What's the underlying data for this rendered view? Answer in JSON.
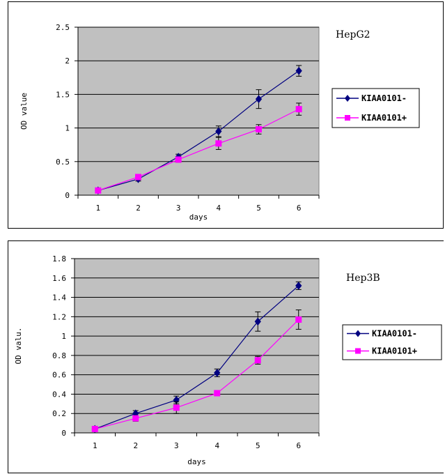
{
  "chart_data": [
    {
      "type": "line",
      "annotation": "HepG2",
      "xlabel": "days",
      "ylabel": "OD value",
      "categories": [
        "1",
        "2",
        "3",
        "4",
        "5",
        "6"
      ],
      "ylim": [
        0,
        2.5
      ],
      "yticks": [
        "0",
        "0.5",
        "1",
        "1.5",
        "2",
        "2.5"
      ],
      "grid": true,
      "legend": "right",
      "series": [
        {
          "name": "KIAA0101-",
          "color": "#000080",
          "marker": "diamond",
          "values": [
            0.07,
            0.24,
            0.57,
            0.95,
            1.43,
            1.85
          ],
          "errors": [
            0.02,
            0.03,
            0.04,
            0.08,
            0.14,
            0.08
          ]
        },
        {
          "name": "KIAA0101+",
          "color": "#ff00ff",
          "marker": "square",
          "values": [
            0.07,
            0.27,
            0.53,
            0.77,
            0.98,
            1.28
          ],
          "errors": [
            0.02,
            0.03,
            0.04,
            0.09,
            0.07,
            0.09
          ]
        }
      ]
    },
    {
      "type": "line",
      "annotation": "Hep3B",
      "xlabel": "days",
      "ylabel": "OD valu.",
      "categories": [
        "1",
        "2",
        "3",
        "4",
        "5",
        "6"
      ],
      "ylim": [
        0,
        1.8
      ],
      "yticks": [
        "0",
        "0.2",
        "0.4",
        "0.6",
        "0.8",
        "1",
        "1.2",
        "1.4",
        "1.6",
        "1.8"
      ],
      "grid": true,
      "legend": "right",
      "series": [
        {
          "name": "KIAA0101-",
          "color": "#000080",
          "marker": "diamond",
          "values": [
            0.04,
            0.2,
            0.34,
            0.62,
            1.15,
            1.52
          ],
          "errors": [
            0.01,
            0.03,
            0.04,
            0.04,
            0.1,
            0.04
          ]
        },
        {
          "name": "KIAA0101+",
          "color": "#ff00ff",
          "marker": "square",
          "values": [
            0.04,
            0.15,
            0.26,
            0.41,
            0.75,
            1.17
          ],
          "errors": [
            0.01,
            0.03,
            0.06,
            0.02,
            0.04,
            0.1
          ]
        }
      ]
    }
  ]
}
